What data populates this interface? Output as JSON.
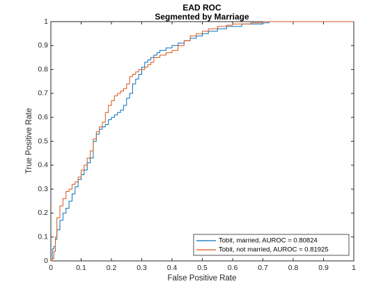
{
  "chart_data": {
    "type": "line",
    "title": "EAD ROC",
    "subtitle": "Segmented by Marriage",
    "xlabel": "False Positive Rate",
    "ylabel": "True Positive Rate",
    "xlim": [
      0,
      1
    ],
    "ylim": [
      0,
      1
    ],
    "xticks": [
      "0",
      "0.1",
      "0.2",
      "0.3",
      "0.4",
      "0.5",
      "0.6",
      "0.7",
      "0.8",
      "0.9",
      "1"
    ],
    "yticks": [
      "0",
      "0.1",
      "0.2",
      "0.3",
      "0.4",
      "0.5",
      "0.6",
      "0.7",
      "0.8",
      "0.9",
      "1"
    ],
    "grid": false,
    "legend_position": "bottom-right",
    "series": [
      {
        "name": "Tobit, married, AUROC = 0.80824",
        "color": "#0072BD",
        "x": [
          0,
          0.005,
          0.01,
          0.015,
          0.02,
          0.03,
          0.04,
          0.05,
          0.06,
          0.07,
          0.08,
          0.09,
          0.1,
          0.11,
          0.12,
          0.13,
          0.14,
          0.15,
          0.16,
          0.17,
          0.18,
          0.19,
          0.2,
          0.21,
          0.22,
          0.23,
          0.24,
          0.25,
          0.26,
          0.27,
          0.28,
          0.29,
          0.3,
          0.31,
          0.32,
          0.33,
          0.34,
          0.35,
          0.36,
          0.38,
          0.4,
          0.42,
          0.44,
          0.46,
          0.48,
          0.5,
          0.52,
          0.55,
          0.58,
          0.6,
          0.63,
          0.66,
          0.7,
          0.72,
          0.73,
          0.74,
          0.8,
          0.9,
          1
        ],
        "y": [
          0,
          0.05,
          0.06,
          0.09,
          0.13,
          0.17,
          0.2,
          0.22,
          0.25,
          0.28,
          0.31,
          0.34,
          0.36,
          0.38,
          0.41,
          0.43,
          0.5,
          0.53,
          0.55,
          0.56,
          0.57,
          0.59,
          0.6,
          0.61,
          0.62,
          0.63,
          0.65,
          0.68,
          0.7,
          0.74,
          0.76,
          0.78,
          0.81,
          0.83,
          0.84,
          0.85,
          0.86,
          0.87,
          0.88,
          0.89,
          0.9,
          0.91,
          0.92,
          0.93,
          0.94,
          0.95,
          0.96,
          0.97,
          0.98,
          0.98,
          0.99,
          0.99,
          0.995,
          1,
          1,
          1,
          1,
          1,
          1
        ]
      },
      {
        "name": "Tobit, not married, AUROC = 0.81925",
        "color": "#D95319",
        "x": [
          0,
          0.005,
          0.01,
          0.015,
          0.02,
          0.03,
          0.04,
          0.05,
          0.06,
          0.07,
          0.08,
          0.09,
          0.1,
          0.11,
          0.12,
          0.13,
          0.14,
          0.15,
          0.16,
          0.17,
          0.18,
          0.19,
          0.2,
          0.21,
          0.22,
          0.23,
          0.24,
          0.25,
          0.26,
          0.27,
          0.28,
          0.29,
          0.3,
          0.31,
          0.32,
          0.33,
          0.34,
          0.36,
          0.38,
          0.4,
          0.42,
          0.44,
          0.46,
          0.48,
          0.5,
          0.52,
          0.55,
          0.58,
          0.6,
          0.63,
          0.66,
          0.7,
          0.73,
          0.8,
          0.9,
          1
        ],
        "y": [
          0,
          0.01,
          0.04,
          0.1,
          0.18,
          0.23,
          0.26,
          0.29,
          0.3,
          0.32,
          0.33,
          0.35,
          0.38,
          0.4,
          0.43,
          0.46,
          0.51,
          0.54,
          0.56,
          0.58,
          0.62,
          0.65,
          0.67,
          0.69,
          0.7,
          0.71,
          0.72,
          0.74,
          0.77,
          0.78,
          0.79,
          0.8,
          0.8,
          0.81,
          0.82,
          0.83,
          0.85,
          0.86,
          0.87,
          0.88,
          0.9,
          0.92,
          0.94,
          0.95,
          0.96,
          0.97,
          0.98,
          0.985,
          0.99,
          0.99,
          0.995,
          1,
          1,
          1,
          1,
          1
        ]
      }
    ]
  }
}
